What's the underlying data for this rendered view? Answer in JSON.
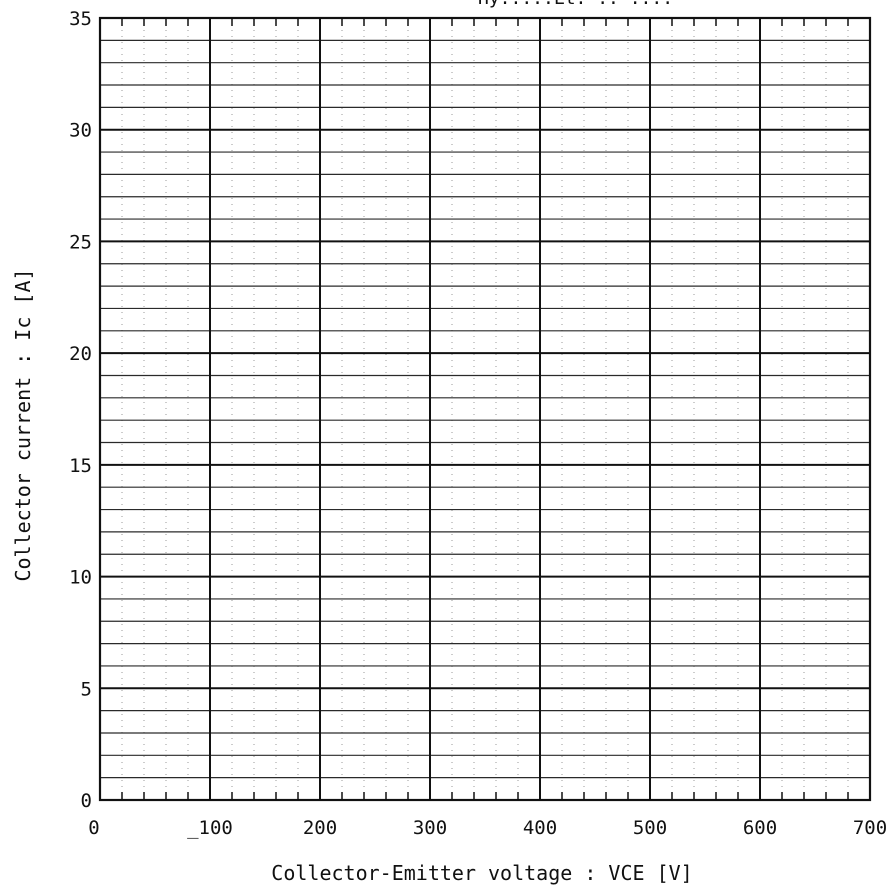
{
  "chart_data": {
    "type": "line",
    "title": "Hy.....Lt. .. ....",
    "xlabel": "Collector-Emitter voltage  : VCE  [V]",
    "ylabel": "Collector current :  Ic  [A]",
    "xlim": [
      0,
      700
    ],
    "ylim": [
      0,
      35
    ],
    "x_ticks": [
      0,
      100,
      200,
      300,
      400,
      500,
      600,
      700
    ],
    "y_ticks": [
      0,
      5,
      10,
      15,
      20,
      25,
      30,
      35
    ],
    "x_tick_labels": [
      "0",
      "_100",
      "200",
      "300",
      "400",
      "500",
      "600",
      "700"
    ],
    "y_tick_labels": [
      "0",
      "5",
      "10",
      "15",
      "20",
      "25",
      "30",
      "35"
    ],
    "x_minor_step": 20,
    "y_minor_step": 1,
    "grid": true,
    "series": []
  }
}
